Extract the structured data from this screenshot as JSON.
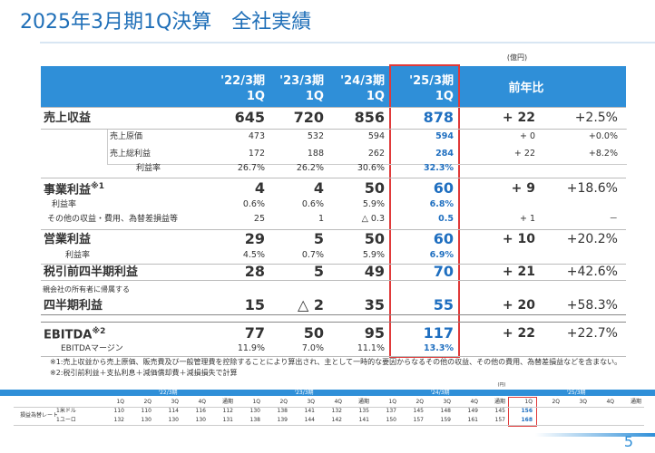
{
  "title": "2025年3月期1Q決算　全社実績",
  "unit": "(億円)",
  "table": {
    "columns": [
      {
        "period": "'22/3期",
        "quarter": "1Q"
      },
      {
        "period": "'23/3期",
        "quarter": "1Q"
      },
      {
        "period": "'24/3期",
        "quarter": "1Q"
      },
      {
        "period": "'25/3期",
        "quarter": "1Q"
      }
    ],
    "change_header": "前年比",
    "rows": [
      {
        "label": "売上収益",
        "values": [
          "645",
          "720",
          "856",
          "878"
        ],
        "change": "+ 22",
        "pct": "+2.5%"
      },
      {
        "label": "売上原価",
        "values": [
          "473",
          "532",
          "594",
          "594"
        ],
        "change": "+ 0",
        "pct": "+0.0%"
      },
      {
        "label": "売上総利益",
        "values": [
          "172",
          "188",
          "262",
          "284"
        ],
        "change": "+ 22",
        "pct": "+8.2%"
      },
      {
        "label": "利益率",
        "values": [
          "26.7%",
          "26.2%",
          "30.6%",
          "32.3%"
        ]
      },
      {
        "label": "事業利益",
        "marker": "※1",
        "values": [
          "4",
          "4",
          "50",
          "60"
        ],
        "change": "+ 9",
        "pct": "+18.6%"
      },
      {
        "label": "利益率",
        "values": [
          "0.6%",
          "0.6%",
          "5.9%",
          "6.8%"
        ]
      },
      {
        "label": "その他の収益・費用、為替差損益等",
        "values": [
          "25",
          "1",
          "△ 0.3",
          "0.5"
        ],
        "change": "+ 1",
        "pct": "－"
      },
      {
        "label": "営業利益",
        "values": [
          "29",
          "5",
          "50",
          "60"
        ],
        "change": "+ 10",
        "pct": "+20.2%"
      },
      {
        "label": "利益率",
        "values": [
          "4.5%",
          "0.7%",
          "5.9%",
          "6.9%"
        ]
      },
      {
        "label": "税引前四半期利益",
        "values": [
          "28",
          "5",
          "49",
          "70"
        ],
        "change": "+ 21",
        "pct": "+42.6%"
      },
      {
        "prefix": "親会社の所有者に帰属する",
        "label": "四半期利益",
        "values": [
          "15",
          "△ 2",
          "35",
          "55"
        ],
        "change": "+ 20",
        "pct": "+58.3%"
      },
      {
        "label": "EBITDA",
        "marker": "※2",
        "values": [
          "77",
          "50",
          "95",
          "117"
        ],
        "change": "+ 22",
        "pct": "+22.7%"
      },
      {
        "label": "EBITDAマージン",
        "values": [
          "11.9%",
          "7.0%",
          "11.1%",
          "13.3%"
        ]
      }
    ]
  },
  "notes": [
    "※1:売上収益から売上原価、販売費及び一般管理費を控除することにより算出され、主として一時的な要因からなるその他の収益、その他の費用、為替差損益などを含まない。",
    "※2:税引前利益＋支払利息＋減価償却費＋減損損失で計算"
  ],
  "fx_table": {
    "unit": "(円)",
    "group_label": "損益為替レート",
    "periods": [
      {
        "label": "'22/3期",
        "quarters": [
          "1Q",
          "2Q",
          "3Q",
          "4Q",
          "通期"
        ]
      },
      {
        "label": "'23/3期",
        "quarters": [
          "1Q",
          "2Q",
          "3Q",
          "4Q",
          "通期"
        ]
      },
      {
        "label": "'24/3期",
        "quarters": [
          "1Q",
          "2Q",
          "3Q",
          "4Q",
          "通期"
        ]
      },
      {
        "label": "'25/3期",
        "quarters": [
          "1Q",
          "2Q",
          "3Q",
          "4Q",
          "通期"
        ]
      }
    ],
    "rows": [
      {
        "label": "1米ドル",
        "values": [
          [
            110,
            110,
            114,
            116,
            112
          ],
          [
            130,
            138,
            141,
            132,
            135
          ],
          [
            137,
            145,
            148,
            149,
            145
          ],
          [
            156
          ]
        ]
      },
      {
        "label": "1ユーロ",
        "values": [
          [
            132,
            130,
            130,
            130,
            131
          ],
          [
            138,
            139,
            144,
            142,
            141
          ],
          [
            150,
            157,
            159,
            161,
            157
          ],
          [
            168
          ]
        ]
      }
    ]
  },
  "page_number": "5"
}
